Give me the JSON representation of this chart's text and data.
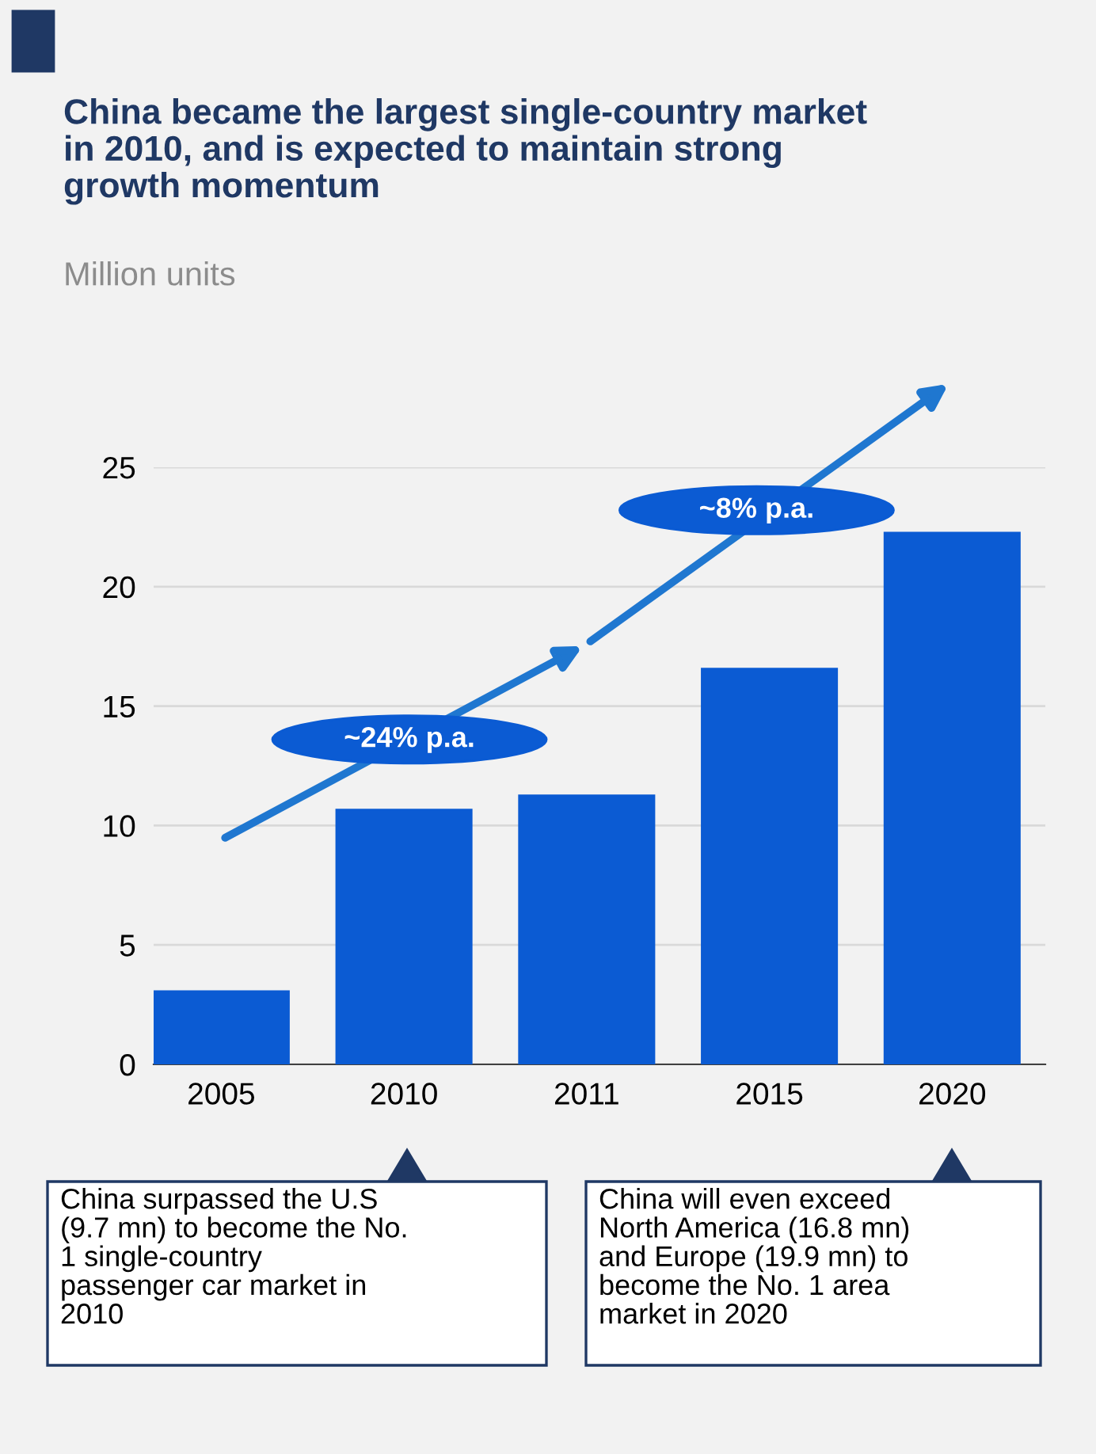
{
  "chart_data": {
    "type": "bar",
    "title": "China became the largest single-country market\nin 2010, and is expected to maintain strong\ngrowth momentum",
    "subtitle": "Million units",
    "categories": [
      "2005",
      "2010",
      "2011",
      "2015",
      "2020"
    ],
    "values": [
      3.1,
      10.7,
      11.3,
      16.6,
      22.3
    ],
    "color": "#0b5bd3",
    "ylim": [
      0,
      25
    ],
    "yticks": [
      0,
      5,
      10,
      15,
      20,
      25
    ],
    "grid": "y",
    "legend": false,
    "annotations": [
      "~24% p.a.",
      "~8% p.a.",
      "China surpassed the U.S\n(9.7 mn) to become the No.\n1 single-country\npassenger car market in\n2010",
      "China will even exceed\nNorth America (16.8 mn)\nand Europe (19.9 mn) to\nbecome the No. 1 area\nmarket in 2020"
    ]
  }
}
